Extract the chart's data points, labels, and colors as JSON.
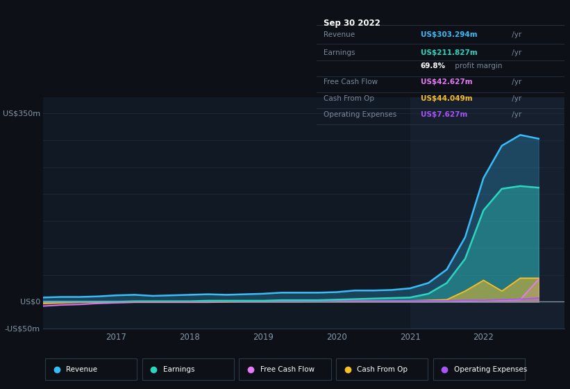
{
  "bg_color": "#0d1117",
  "plot_bg": "#111a24",
  "highlight_bg": "#151f2e",
  "ylim": [
    -50,
    380
  ],
  "xlim": [
    2016.0,
    2023.1
  ],
  "x_ticks": [
    2017,
    2018,
    2019,
    2020,
    2021,
    2022
  ],
  "y_labels": [
    {
      "text": "US$350m",
      "y": 350
    },
    {
      "text": "US$0",
      "y": 0
    },
    {
      "text": "-US$50m",
      "y": -50
    }
  ],
  "grid_lines": [
    350,
    300,
    250,
    200,
    150,
    100,
    50,
    0,
    -50
  ],
  "series_colors": {
    "revenue": "#38bdf8",
    "earnings": "#2dd4bf",
    "free_cash_flow": "#e879f9",
    "cash_from_op": "#fbbf24",
    "operating_expenses": "#a855f7"
  },
  "legend_items": [
    {
      "label": "Revenue",
      "color": "#38bdf8"
    },
    {
      "label": "Earnings",
      "color": "#2dd4bf"
    },
    {
      "label": "Free Cash Flow",
      "color": "#e879f9"
    },
    {
      "label": "Cash From Op",
      "color": "#fbbf24"
    },
    {
      "label": "Operating Expenses",
      "color": "#a855f7"
    }
  ],
  "info_box": {
    "date": "Sep 30 2022",
    "rows": [
      {
        "label": "Revenue",
        "value": "US$303.294m",
        "unit": " /yr",
        "value_color": "#38bdf8"
      },
      {
        "label": "Earnings",
        "value": "US$211.827m",
        "unit": " /yr",
        "value_color": "#2dd4bf"
      },
      {
        "label": "",
        "bold": "69.8%",
        "rest": " profit margin",
        "value_color": "#aaaaaa"
      },
      {
        "label": "Free Cash Flow",
        "value": "US$42.627m",
        "unit": " /yr",
        "value_color": "#e879f9"
      },
      {
        "label": "Cash From Op",
        "value": "US$44.049m",
        "unit": " /yr",
        "value_color": "#fbbf24"
      },
      {
        "label": "Operating Expenses",
        "value": "US$7.627m",
        "unit": " /yr",
        "value_color": "#a855f7"
      }
    ]
  },
  "revenue_x": [
    2016.0,
    2016.25,
    2016.5,
    2016.75,
    2017.0,
    2017.25,
    2017.5,
    2017.75,
    2018.0,
    2018.25,
    2018.5,
    2018.75,
    2019.0,
    2019.25,
    2019.5,
    2019.75,
    2020.0,
    2020.25,
    2020.5,
    2020.75,
    2021.0,
    2021.25,
    2021.5,
    2021.75,
    2022.0,
    2022.25,
    2022.5,
    2022.75
  ],
  "revenue_y": [
    8,
    9,
    9,
    10,
    12,
    13,
    11,
    12,
    13,
    14,
    13,
    14,
    15,
    17,
    17,
    17,
    18,
    21,
    21,
    22,
    25,
    35,
    60,
    120,
    230,
    290,
    310,
    303
  ],
  "earnings_x": [
    2016.0,
    2016.25,
    2016.5,
    2016.75,
    2017.0,
    2017.25,
    2017.5,
    2017.75,
    2018.0,
    2018.25,
    2018.5,
    2018.75,
    2019.0,
    2019.25,
    2019.5,
    2019.75,
    2020.0,
    2020.25,
    2020.5,
    2020.75,
    2021.0,
    2021.25,
    2021.5,
    2021.75,
    2022.0,
    2022.25,
    2022.5,
    2022.75
  ],
  "earnings_y": [
    0,
    0,
    0,
    0,
    0,
    1,
    1,
    1,
    1,
    2,
    2,
    2,
    2,
    3,
    3,
    3,
    4,
    5,
    6,
    7,
    8,
    15,
    35,
    80,
    170,
    210,
    215,
    212
  ],
  "fcf_x": [
    2016.0,
    2016.25,
    2016.5,
    2016.75,
    2017.0,
    2017.25,
    2017.5,
    2017.75,
    2018.0,
    2018.25,
    2018.5,
    2018.75,
    2019.0,
    2019.25,
    2019.5,
    2019.75,
    2020.0,
    2020.25,
    2020.5,
    2020.75,
    2021.0,
    2021.25,
    2021.5,
    2021.75,
    2022.0,
    2022.25,
    2022.5,
    2022.75
  ],
  "fcf_y": [
    -8,
    -6,
    -5,
    -3,
    -2,
    -1,
    -1,
    -1,
    -1,
    -1,
    0,
    0,
    0,
    0,
    0,
    1,
    1,
    1,
    1,
    1,
    2,
    2,
    2,
    2,
    3,
    3,
    4,
    42
  ],
  "cfop_x": [
    2016.0,
    2016.25,
    2016.5,
    2016.75,
    2017.0,
    2017.25,
    2017.5,
    2017.75,
    2018.0,
    2018.25,
    2018.5,
    2018.75,
    2019.0,
    2019.25,
    2019.5,
    2019.75,
    2020.0,
    2020.25,
    2020.5,
    2020.75,
    2021.0,
    2021.25,
    2021.5,
    2021.75,
    2022.0,
    2022.25,
    2022.5,
    2022.75
  ],
  "cfop_y": [
    -3,
    -2,
    -1,
    -1,
    0,
    0,
    0,
    0,
    0,
    0,
    0,
    1,
    1,
    1,
    1,
    1,
    1,
    1,
    2,
    2,
    2,
    3,
    4,
    20,
    40,
    20,
    44,
    44
  ],
  "opex_x": [
    2016.0,
    2016.25,
    2016.5,
    2016.75,
    2017.0,
    2017.25,
    2017.5,
    2017.75,
    2018.0,
    2018.25,
    2018.5,
    2018.75,
    2019.0,
    2019.25,
    2019.5,
    2019.75,
    2020.0,
    2020.25,
    2020.5,
    2020.75,
    2021.0,
    2021.25,
    2021.5,
    2021.75,
    2022.0,
    2022.25,
    2022.5,
    2022.75
  ],
  "opex_y": [
    1,
    1,
    1,
    1,
    1,
    1,
    1,
    1,
    1,
    1,
    1,
    1,
    1,
    1,
    1,
    1,
    2,
    2,
    2,
    2,
    2,
    2,
    2,
    3,
    3,
    4,
    5,
    7
  ]
}
